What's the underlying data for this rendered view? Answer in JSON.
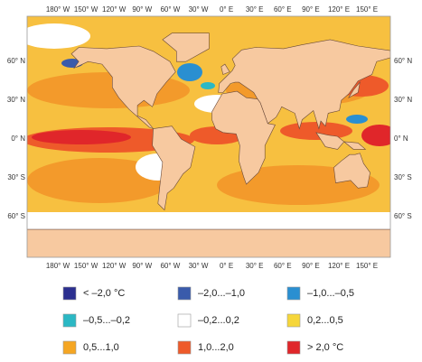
{
  "map": {
    "longitude_labels": [
      "180° W",
      "150° W",
      "120° W",
      "90° W",
      "60° W",
      "30° W",
      "0° E",
      "30° E",
      "60° E",
      "90° E",
      "120° E",
      "150° E"
    ],
    "latitude_labels": [
      "60° N",
      "30° N",
      "0° N",
      "30° S",
      "60° S"
    ]
  },
  "legend": [
    {
      "label": "< –2,0 °C",
      "color": "#2b2f8f"
    },
    {
      "label": "–2,0...–1,0",
      "color": "#3a5bab"
    },
    {
      "label": "–1,0...–0,5",
      "color": "#2a8fd1"
    },
    {
      "label": "–0,5...–0,2",
      "color": "#2bb8c4"
    },
    {
      "label": "–0,2...0,2",
      "color": "#ffffff"
    },
    {
      "label": "0,2...0,5",
      "color": "#f6d63a"
    },
    {
      "label": "0,5...1,0",
      "color": "#f5a623"
    },
    {
      "label": "1,0...2,0",
      "color": "#ee5a2a"
    },
    {
      "label": "> 2,0 °C",
      "color": "#e0262a"
    }
  ]
}
